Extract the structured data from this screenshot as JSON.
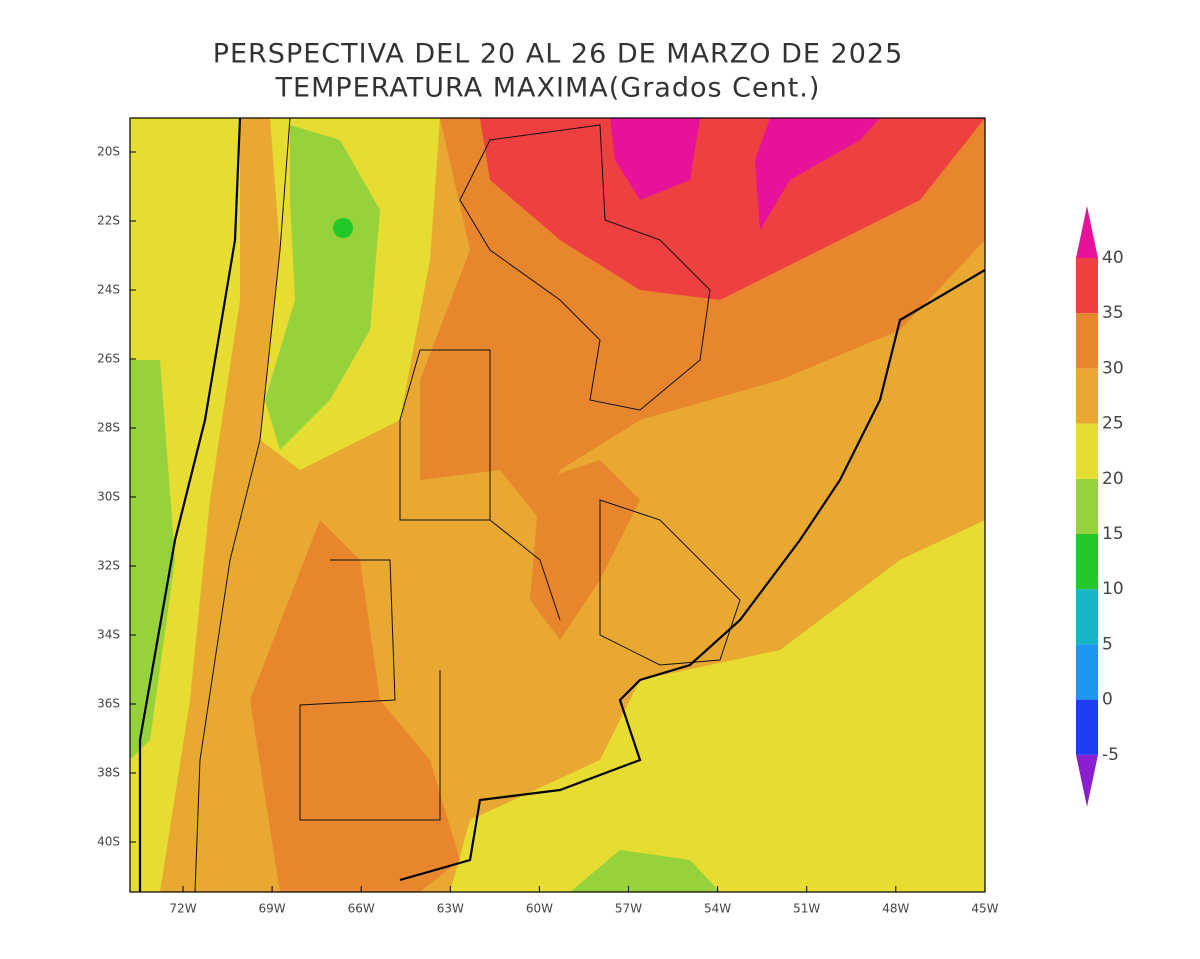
{
  "title": [
    "PERSPECTIVA DEL 20 AL 26 DE MARZO DE 2025",
    "TEMPERATURA MAXIMA(Grados Cent.)"
  ],
  "lat_labels": [
    "20S",
    "22S",
    "24S",
    "26S",
    "28S",
    "30S",
    "32S",
    "34S",
    "36S",
    "38S",
    "40S"
  ],
  "lon_labels": [
    "72W",
    "69W",
    "66W",
    "63W",
    "60W",
    "57W",
    "54W",
    "51W",
    "48W",
    "45W"
  ],
  "colorbar": {
    "levels": [
      -5,
      0,
      5,
      10,
      15,
      20,
      25,
      30,
      35,
      40
    ],
    "colors": [
      "#8c1ed2",
      "#1e3cf0",
      "#1e96f0",
      "#18b4c8",
      "#22c828",
      "#96d23c",
      "#e6dc32",
      "#e8a832",
      "#e8862e",
      "#ee4040",
      "#e6139a"
    ]
  }
}
